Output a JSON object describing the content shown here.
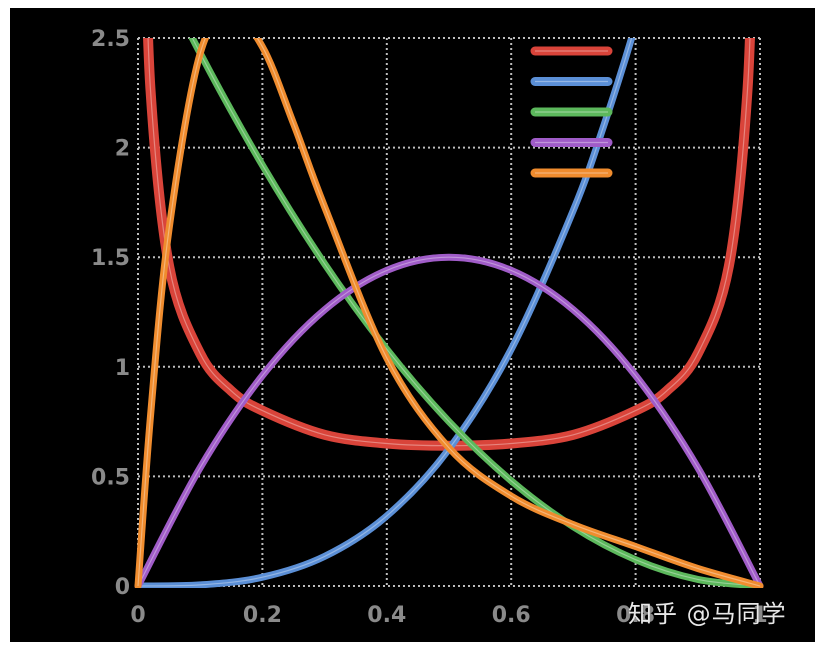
{
  "chart_data": {
    "type": "line",
    "title": "",
    "xlabel": "",
    "ylabel": "",
    "xlim": [
      0,
      1
    ],
    "ylim": [
      0,
      2.5
    ],
    "grid": true,
    "legend_position": "top-right",
    "x_ticks": [
      "0",
      "0.2",
      "0.4",
      "0.6",
      "0.8",
      "1"
    ],
    "y_ticks": [
      "0",
      "0.5",
      "1",
      "1.5",
      "2",
      "2.5"
    ],
    "series": [
      {
        "color": "#d9443a",
        "x": [
          0.01,
          0.02,
          0.05,
          0.1,
          0.15,
          0.2,
          0.3,
          0.4,
          0.5,
          0.6,
          0.7,
          0.8,
          0.85,
          0.9,
          0.95,
          0.98,
          0.99
        ],
        "y": [
          3.2,
          2.27,
          1.46,
          1.06,
          0.89,
          0.8,
          0.69,
          0.65,
          0.64,
          0.65,
          0.69,
          0.8,
          0.89,
          1.06,
          1.46,
          2.27,
          3.2
        ]
      },
      {
        "color": "#5b8fd6",
        "x": [
          0,
          0.1,
          0.2,
          0.3,
          0.4,
          0.5,
          0.6,
          0.7,
          0.75,
          0.8,
          0.85
        ],
        "y": [
          0,
          0.005,
          0.04,
          0.135,
          0.32,
          0.625,
          1.08,
          1.715,
          2.11,
          2.56,
          3.07
        ]
      },
      {
        "color": "#5cb85c",
        "x": [
          0,
          0.1,
          0.2,
          0.3,
          0.4,
          0.5,
          0.6,
          0.7,
          0.8,
          0.9,
          1
        ],
        "y": [
          3.0,
          2.43,
          1.92,
          1.47,
          1.08,
          0.75,
          0.48,
          0.27,
          0.12,
          0.03,
          0
        ]
      },
      {
        "color": "#a05cc8",
        "x": [
          0,
          0.1,
          0.2,
          0.3,
          0.4,
          0.5,
          0.6,
          0.7,
          0.8,
          0.9,
          1
        ],
        "y": [
          0,
          0.54,
          0.96,
          1.26,
          1.44,
          1.5,
          1.44,
          1.26,
          0.96,
          0.54,
          0
        ]
      },
      {
        "color": "#f08c2e",
        "x": [
          0,
          0.02,
          0.05,
          0.1,
          0.15,
          0.2,
          0.25,
          0.3,
          0.4,
          0.5,
          0.6,
          0.7,
          0.8,
          0.9,
          1
        ],
        "y": [
          0,
          0.77,
          1.63,
          2.43,
          2.61,
          2.46,
          2.11,
          1.73,
          1.04,
          0.63,
          0.41,
          0.28,
          0.18,
          0.08,
          0
        ]
      }
    ]
  },
  "watermark": "知乎 @马同学"
}
